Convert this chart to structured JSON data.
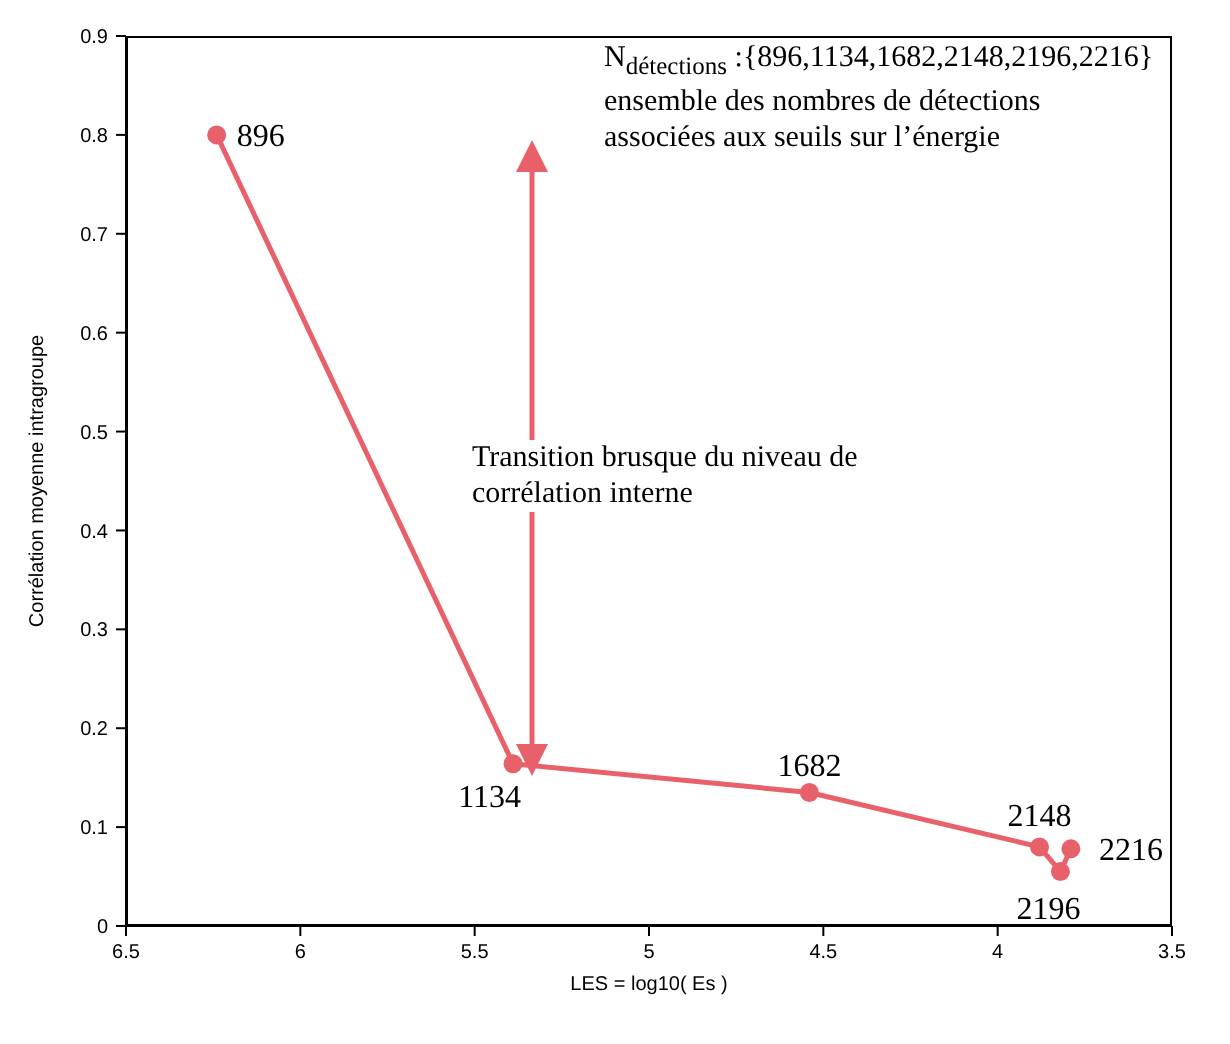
{
  "chart_data": {
    "type": "line",
    "xlabel": "LES = log10( Es )",
    "ylabel": "Corrélation moyenne intragroupe",
    "x": [
      6.24,
      5.39,
      4.54,
      3.88,
      3.82,
      3.79
    ],
    "series": [
      {
        "color": "#e8606a",
        "values": [
          0.8,
          0.164,
          0.135,
          0.08,
          0.055,
          0.078
        ]
      }
    ],
    "xlim": [
      6.5,
      3.5
    ],
    "xticks": [
      6.5,
      6,
      5.5,
      5,
      4.5,
      4,
      3.5
    ],
    "ylim": [
      0,
      0.9
    ],
    "yticks": [
      0,
      0.1,
      0.2,
      0.3,
      0.4,
      0.5,
      0.6,
      0.7,
      0.8,
      0.9
    ],
    "grid": false,
    "legend": false,
    "marker": "circle",
    "line_style": "solid",
    "annotations": [
      {
        "text": "896",
        "x": 6.24,
        "y": 0.8
      },
      {
        "text": "1134",
        "x": 5.39,
        "y": 0.164
      },
      {
        "text": "1682",
        "x": 4.54,
        "y": 0.135
      },
      {
        "text": "2148",
        "x": 3.88,
        "y": 0.08
      },
      {
        "text": "2196",
        "x": 3.82,
        "y": 0.055
      },
      {
        "text": "2216",
        "x": 3.79,
        "y": 0.078
      },
      "N$_{détections}$ :{896,1134,1682,2148,2196,2216}",
      "ensemble des nombres de détections",
      "associées aux seuils sur l’énergie",
      "Transition brusque du niveau de",
      "corrélation interne"
    ]
  }
}
